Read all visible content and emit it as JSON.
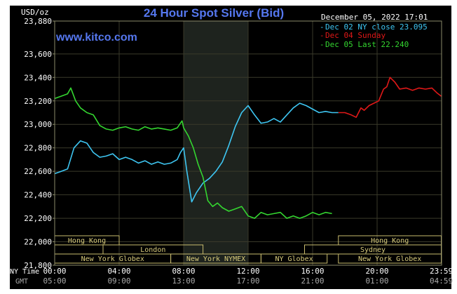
{
  "chart_data": {
    "type": "line",
    "title": "24 Hour Spot Silver (Bid)",
    "ylabel": "USD/oz",
    "watermark": "www.kitco.com",
    "timestamp": "December 05, 2022 17:01",
    "ylim": [
      21.8,
      23.88
    ],
    "yticks": [
      "23,880",
      "23,600",
      "23,400",
      "23,200",
      "23,000",
      "22,800",
      "22,600",
      "22,400",
      "22,200",
      "22,000",
      "21,800"
    ],
    "ytick_values": [
      23.88,
      23.6,
      23.4,
      23.2,
      23.0,
      22.8,
      22.6,
      22.4,
      22.2,
      22.0,
      21.8
    ],
    "xlim": [
      0,
      24
    ],
    "x_axis_label_ny": "NY Time",
    "x_axis_label_gmt": "GMT",
    "xticks_ny": [
      "00:00",
      "04:00",
      "08:00",
      "12:00",
      "16:00",
      "20:00",
      "23:59"
    ],
    "xticks_gmt": [
      "05:00",
      "09:00",
      "13:00",
      "17:00",
      "21:00",
      "01:00",
      "04:59"
    ],
    "xtick_positions": [
      0,
      4,
      8,
      12,
      16,
      20,
      23.98
    ],
    "highlight_range": [
      8,
      12
    ],
    "legend": [
      {
        "label": "Dec 02 NY close 23.095",
        "color": "#3ec6f2"
      },
      {
        "label": "Dec 04 Sunday",
        "color": "#e01818"
      },
      {
        "label": "Dec 05 Last 22.240",
        "color": "#34d630"
      }
    ],
    "series": [
      {
        "name": "Dec 02 NY close 23.095",
        "color": "#3ec6f2",
        "x": [
          0,
          0.4,
          0.8,
          1.2,
          1.6,
          2.0,
          2.4,
          2.8,
          3.2,
          3.6,
          4.0,
          4.4,
          4.8,
          5.2,
          5.6,
          6.0,
          6.4,
          6.8,
          7.2,
          7.6,
          7.8,
          8.0,
          8.2,
          8.5,
          8.8,
          9.2,
          9.6,
          10.0,
          10.4,
          10.8,
          11.2,
          11.6,
          12.0,
          12.4,
          12.8,
          13.2,
          13.6,
          14.0,
          14.4,
          14.8,
          15.2,
          15.6,
          16.0,
          16.4,
          16.8,
          17.2,
          17.6
        ],
        "y": [
          22.58,
          22.6,
          22.62,
          22.8,
          22.86,
          22.84,
          22.76,
          22.72,
          22.73,
          22.75,
          22.7,
          22.72,
          22.7,
          22.67,
          22.69,
          22.66,
          22.68,
          22.66,
          22.67,
          22.7,
          22.76,
          22.8,
          22.6,
          22.34,
          22.42,
          22.5,
          22.54,
          22.6,
          22.68,
          22.82,
          22.98,
          23.1,
          23.16,
          23.08,
          23.01,
          23.02,
          23.05,
          23.02,
          23.08,
          23.14,
          23.18,
          23.16,
          23.13,
          23.1,
          23.11,
          23.1,
          23.1
        ]
      },
      {
        "name": "Dec 04 Sunday",
        "color": "#e01818",
        "x": [
          17.6,
          18.0,
          18.4,
          18.7,
          19.0,
          19.2,
          19.5,
          19.8,
          20.1,
          20.4,
          20.6,
          20.8,
          21.1,
          21.4,
          21.8,
          22.2,
          22.6,
          23.0,
          23.4,
          23.7,
          23.98
        ],
        "y": [
          23.1,
          23.1,
          23.08,
          23.06,
          23.14,
          23.12,
          23.16,
          23.18,
          23.2,
          23.3,
          23.32,
          23.4,
          23.36,
          23.3,
          23.31,
          23.29,
          23.31,
          23.3,
          23.31,
          23.27,
          23.24
        ]
      },
      {
        "name": "Dec 05 Last 22.240",
        "color": "#34d630",
        "x": [
          0,
          0.4,
          0.8,
          1.0,
          1.3,
          1.6,
          2.0,
          2.4,
          2.8,
          3.2,
          3.6,
          4.0,
          4.4,
          4.8,
          5.2,
          5.6,
          6.0,
          6.4,
          6.8,
          7.2,
          7.6,
          7.9,
          8.0,
          8.3,
          8.6,
          8.9,
          9.2,
          9.5,
          9.8,
          10.1,
          10.4,
          10.8,
          11.2,
          11.6,
          12.0,
          12.4,
          12.8,
          13.2,
          13.6,
          14.0,
          14.4,
          14.8,
          15.2,
          15.6,
          16.0,
          16.4,
          16.8,
          17.2
        ],
        "y": [
          23.22,
          23.24,
          23.26,
          23.31,
          23.2,
          23.14,
          23.1,
          23.08,
          22.99,
          22.96,
          22.95,
          22.97,
          22.98,
          22.96,
          22.95,
          22.98,
          22.96,
          22.97,
          22.96,
          22.95,
          22.97,
          23.03,
          22.97,
          22.9,
          22.8,
          22.66,
          22.55,
          22.35,
          22.3,
          22.33,
          22.29,
          22.26,
          22.28,
          22.3,
          22.22,
          22.2,
          22.25,
          22.23,
          22.24,
          22.25,
          22.2,
          22.22,
          22.2,
          22.22,
          22.25,
          22.23,
          22.25,
          22.24
        ]
      }
    ],
    "markets": [
      {
        "label": "Hong Kong",
        "start": 0,
        "end": 4,
        "row": 0
      },
      {
        "label": "Hong Kong",
        "start": 17.6,
        "end": 23.98,
        "row": 0
      },
      {
        "label": "London",
        "start": 3,
        "end": 9.2,
        "row": 1
      },
      {
        "label": "Sydney",
        "start": 15.5,
        "end": 23.98,
        "row": 1
      },
      {
        "label": "New York Globex",
        "start": 0,
        "end": 7.2,
        "row": 2
      },
      {
        "label": "New York NYMEX",
        "start": 7.2,
        "end": 12.8,
        "row": 2
      },
      {
        "label": "NY Globex",
        "start": 12.8,
        "end": 16.9,
        "row": 2
      },
      {
        "label": "New York Globex",
        "start": 17.6,
        "end": 23.98,
        "row": 2
      }
    ]
  }
}
